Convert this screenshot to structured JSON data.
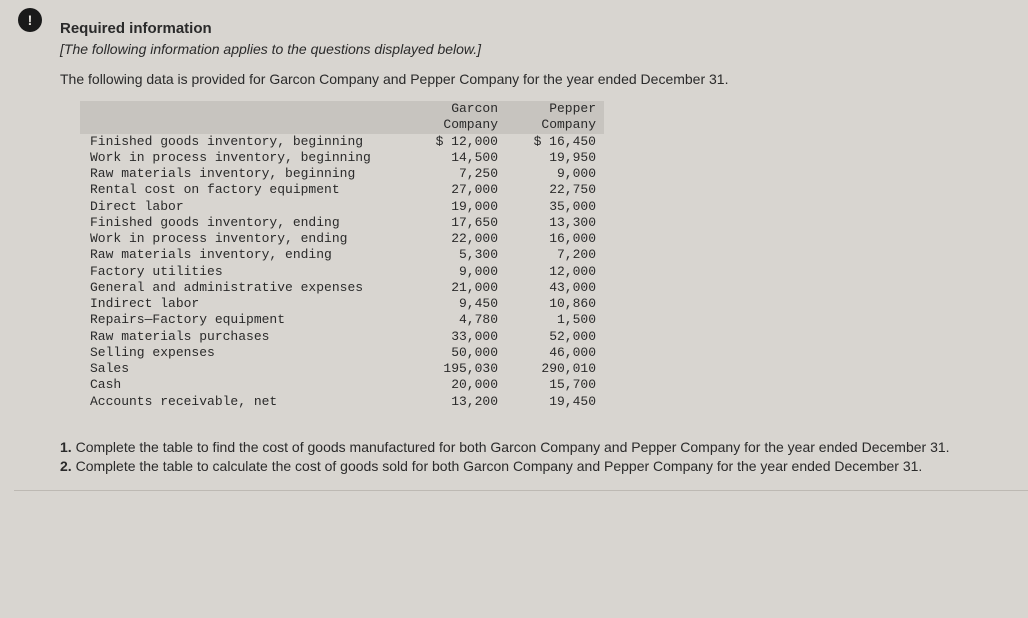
{
  "icon_label": "!",
  "header": "Required information",
  "intro_italic": "[The following information applies to the questions displayed below.]",
  "intro_text": "The following data is provided for Garcon Company and Pepper Company for the year ended December 31.",
  "table": {
    "col1_header_line1": "Garcon",
    "col1_header_line2": "Company",
    "col2_header_line1": "Pepper",
    "col2_header_line2": "Company",
    "rows": [
      {
        "label": "Finished goods inventory, beginning",
        "c1": "$ 12,000",
        "c2": "$ 16,450"
      },
      {
        "label": "Work in process inventory, beginning",
        "c1": "14,500",
        "c2": "19,950"
      },
      {
        "label": "Raw materials inventory, beginning",
        "c1": "7,250",
        "c2": "9,000"
      },
      {
        "label": "Rental cost on factory equipment",
        "c1": "27,000",
        "c2": "22,750"
      },
      {
        "label": "Direct labor",
        "c1": "19,000",
        "c2": "35,000"
      },
      {
        "label": "Finished goods inventory, ending",
        "c1": "17,650",
        "c2": "13,300"
      },
      {
        "label": "Work in process inventory, ending",
        "c1": "22,000",
        "c2": "16,000"
      },
      {
        "label": "Raw materials inventory, ending",
        "c1": "5,300",
        "c2": "7,200"
      },
      {
        "label": "Factory utilities",
        "c1": "9,000",
        "c2": "12,000"
      },
      {
        "label": "General and administrative expenses",
        "c1": "21,000",
        "c2": "43,000"
      },
      {
        "label": "Indirect labor",
        "c1": "9,450",
        "c2": "10,860"
      },
      {
        "label": "Repairs—Factory equipment",
        "c1": "4,780",
        "c2": "1,500"
      },
      {
        "label": "Raw materials purchases",
        "c1": "33,000",
        "c2": "52,000"
      },
      {
        "label": "Selling expenses",
        "c1": "50,000",
        "c2": "46,000"
      },
      {
        "label": "Sales",
        "c1": "195,030",
        "c2": "290,010"
      },
      {
        "label": "Cash",
        "c1": "20,000",
        "c2": "15,700"
      },
      {
        "label": "Accounts receivable, net",
        "c1": "13,200",
        "c2": "19,450"
      }
    ]
  },
  "q1_prefix": "1. ",
  "q1_text": "Complete the table to find the cost of goods manufactured for both Garcon Company and Pepper Company for the year ended December 31.",
  "q2_prefix": "2. ",
  "q2_text": "Complete the table to calculate the cost of goods sold for both Garcon Company and Pepper Company for the year ended December 31."
}
